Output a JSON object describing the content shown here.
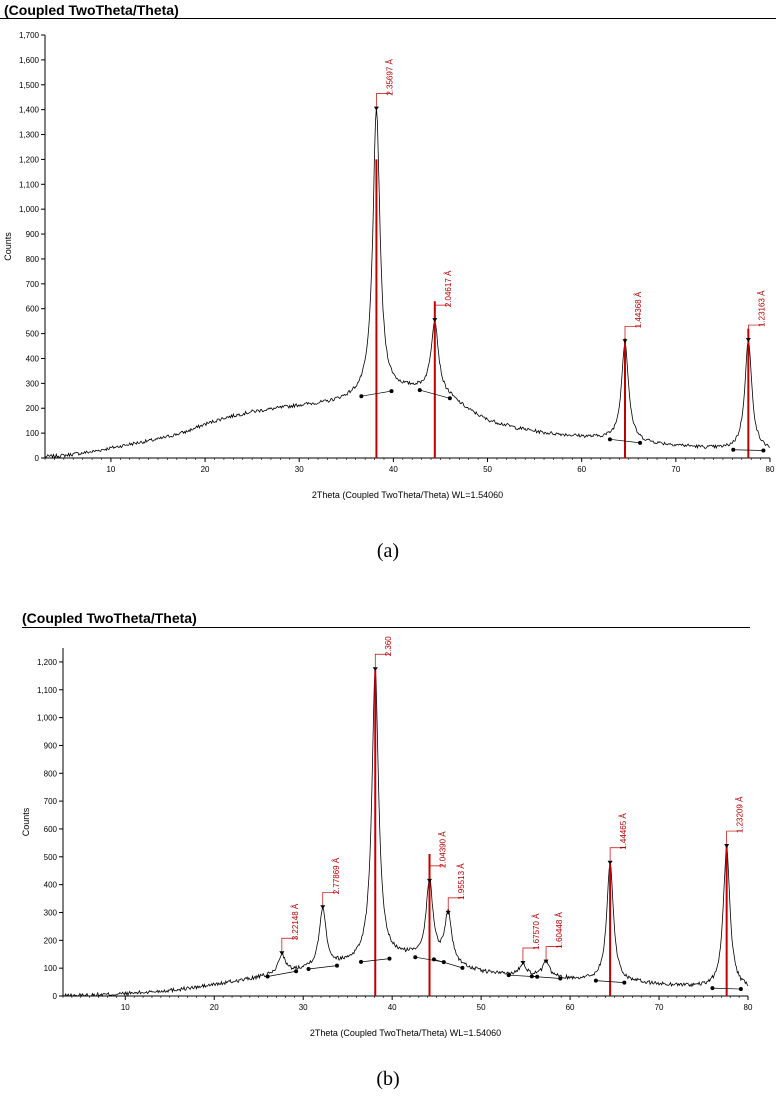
{
  "panels": [
    {
      "title": "(Coupled TwoTheta/Theta)",
      "caption": "(a)",
      "chart_data": {
        "type": "line",
        "xlabel": "2Theta (Coupled TwoTheta/Theta) WL=1.54060",
        "ylabel": "Counts",
        "xlim": [
          3,
          80
        ],
        "ylim": [
          0,
          1700
        ],
        "xticks": [
          10,
          20,
          30,
          40,
          50,
          60,
          70,
          80
        ],
        "yticks": [
          0,
          100,
          200,
          300,
          400,
          500,
          600,
          700,
          800,
          900,
          1000,
          1100,
          1200,
          1300,
          1400,
          1500,
          1600,
          1700
        ],
        "ytick_labels": [
          "0",
          "100",
          "200",
          "300",
          "400",
          "500",
          "600",
          "700",
          "800",
          "900",
          "1,000",
          "1,100",
          "1,200",
          "1,300",
          "1,400",
          "1,500",
          "1,600",
          "1,700"
        ],
        "background": {
          "x": [
            3,
            5,
            8,
            10,
            12,
            15,
            18,
            20,
            22,
            25,
            28,
            30,
            33,
            35,
            38,
            40,
            42,
            44,
            46,
            48,
            50,
            53,
            56,
            60,
            63,
            65,
            68,
            70,
            73,
            75,
            78,
            80
          ],
          "y": [
            5,
            10,
            25,
            40,
            55,
            75,
            105,
            135,
            160,
            185,
            200,
            210,
            220,
            235,
            260,
            270,
            275,
            270,
            240,
            190,
            150,
            120,
            100,
            85,
            75,
            65,
            55,
            50,
            40,
            35,
            30,
            30
          ]
        },
        "peaks": [
          {
            "x": 38.2,
            "height": 1400,
            "label": "2.35697 Å",
            "stick": 1200
          },
          {
            "x": 44.4,
            "height": 550,
            "label": "2.04617 Å",
            "stick": 630
          },
          {
            "x": 64.6,
            "height": 465,
            "label": "1.44368 Å",
            "stick": 480
          },
          {
            "x": 77.7,
            "height": 470,
            "label": "1.23163 Å",
            "stick": 520
          }
        ]
      }
    },
    {
      "title": "(Coupled TwoTheta/Theta)",
      "caption": "(b)",
      "chart_data": {
        "type": "line",
        "xlabel": "2Theta (Coupled TwoTheta/Theta) WL=1.54060",
        "ylabel": "Counts",
        "xlim": [
          3,
          80
        ],
        "ylim": [
          0,
          1250
        ],
        "xticks": [
          10,
          20,
          30,
          40,
          50,
          60,
          70,
          80
        ],
        "yticks": [
          0,
          100,
          200,
          300,
          400,
          500,
          600,
          700,
          800,
          900,
          1000,
          1100,
          1200
        ],
        "ytick_labels": [
          "0",
          "100",
          "200",
          "300",
          "400",
          "500",
          "600",
          "700",
          "800",
          "900",
          "1,000",
          "1,100",
          "1,200"
        ],
        "background": {
          "x": [
            3,
            5,
            8,
            10,
            12,
            15,
            18,
            20,
            22,
            25,
            28,
            30,
            33,
            35,
            38,
            40,
            42,
            44,
            46,
            48,
            50,
            53,
            56,
            60,
            63,
            65,
            68,
            70,
            73,
            75,
            78,
            80
          ],
          "y": [
            0,
            2,
            5,
            8,
            12,
            20,
            30,
            40,
            50,
            65,
            80,
            95,
            105,
            115,
            130,
            135,
            140,
            138,
            120,
            100,
            85,
            75,
            70,
            60,
            55,
            50,
            45,
            40,
            35,
            30,
            25,
            25
          ]
        },
        "peaks": [
          {
            "x": 27.6,
            "height": 150,
            "label": "3.22148 Å",
            "stick": null
          },
          {
            "x": 32.2,
            "height": 315,
            "label": "2.77869 Å",
            "stick": null
          },
          {
            "x": 38.1,
            "height": 1170,
            "label": "2.360",
            "stick": 1170
          },
          {
            "x": 44.2,
            "height": 410,
            "label": "2.04390 Å",
            "stick": 510
          },
          {
            "x": 46.3,
            "height": 295,
            "label": "1.95513 Å",
            "stick": null
          },
          {
            "x": 54.7,
            "height": 115,
            "label": "1.67570 Å",
            "stick": null
          },
          {
            "x": 57.3,
            "height": 120,
            "label": "1.60448 Å",
            "stick": null
          },
          {
            "x": 64.5,
            "height": 475,
            "label": "1.44465 Å",
            "stick": 475
          },
          {
            "x": 77.6,
            "height": 535,
            "label": "1.23209 Å",
            "stick": 540
          }
        ]
      }
    }
  ]
}
